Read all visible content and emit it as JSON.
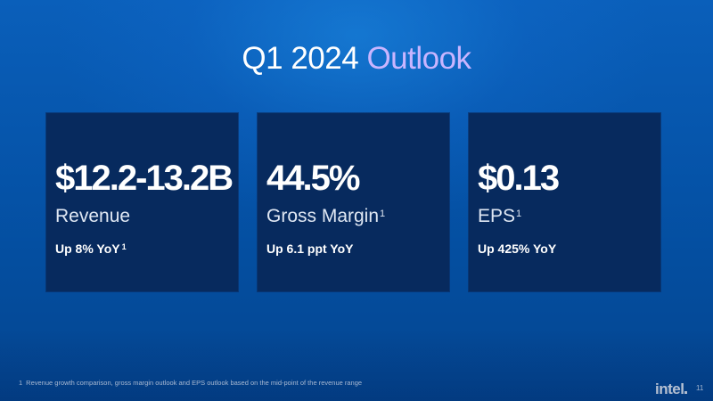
{
  "slide": {
    "title_part1": "Q1 2024",
    "title_part2": "Outlook",
    "cards": [
      {
        "value": "$12.2-13.2B",
        "label": "Revenue",
        "label_sup": "",
        "growth": "Up 8% YoY",
        "growth_sup": "1"
      },
      {
        "value": "44.5%",
        "label": "Gross Margin",
        "label_sup": "1",
        "growth": "Up 6.1 ppt YoY",
        "growth_sup": ""
      },
      {
        "value": "$0.13",
        "label": "EPS",
        "label_sup": "1",
        "growth": "Up 425% YoY",
        "growth_sup": ""
      }
    ],
    "footnote_number": "1",
    "footnote": "Revenue growth comparison, gross margin outlook and EPS outlook based on the mid-point of the revenue range",
    "logo": "intel",
    "page_number": "11"
  },
  "colors": {
    "background": "#0553a8",
    "card": "#072a5e",
    "title_accent": "#c9b5ff"
  }
}
